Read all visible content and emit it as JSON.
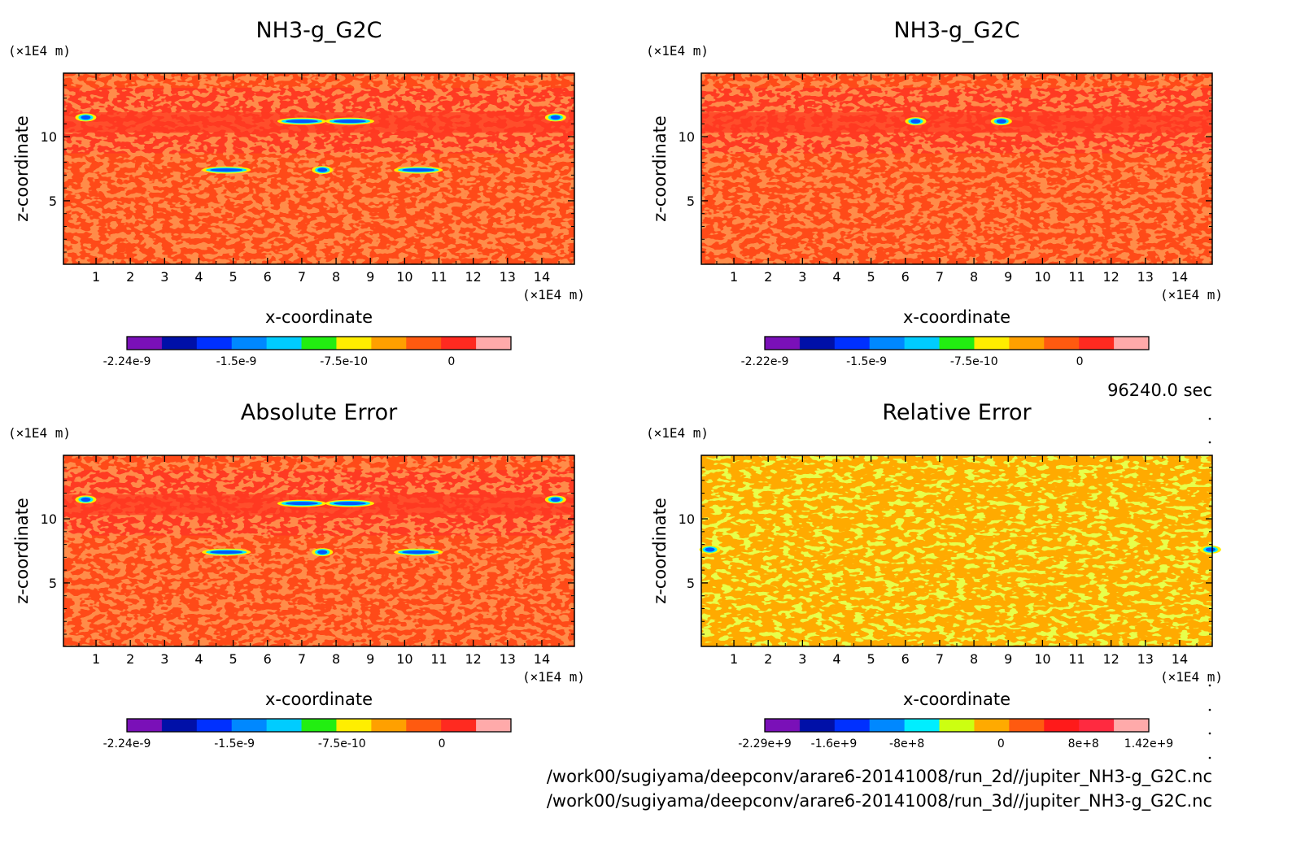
{
  "colors": {
    "field_red": "#ff3a22",
    "field_redorange": "#ff4a18",
    "field_orange": "#ffaa00",
    "field_yellowgreen": "#ccff11",
    "frame": "#000000",
    "blob_blue": "#0055ff",
    "blob_cyan": "#00eeff",
    "blob_yellow": "#ffee00"
  },
  "time_label": "96240.0 sec",
  "file_paths": [
    "/work00/sugiyama/deepconv/arare6-20141008/run_2d//jupiter_NH3-g_G2C.nc",
    "/work00/sugiyama/deepconv/arare6-20141008/run_3d//jupiter_NH3-g_G2C.nc"
  ],
  "chart_data": [
    {
      "type": "heatmap",
      "title": "NH3-g_G2C",
      "xlabel": "x-coordinate",
      "ylabel": "z-coordinate",
      "x_unit": "(×1E4 m)",
      "y_unit": "(×1E4 m)",
      "xlim": [
        0.05,
        14.95
      ],
      "ylim": [
        0.05,
        14.95
      ],
      "x_ticks": [
        "1",
        "2",
        "3",
        "4",
        "5",
        "6",
        "7",
        "8",
        "9",
        "10",
        "11",
        "12",
        "13",
        "14"
      ],
      "y_ticks": [
        "5",
        "10"
      ],
      "colorbar": {
        "colors": [
          "#7a10b8",
          "#0010a8",
          "#0030ff",
          "#0088ff",
          "#00ccff",
          "#22ee11",
          "#ffee00",
          "#ffa000",
          "#ff5a10",
          "#ff2a20",
          "#ffaaaa"
        ],
        "tick_labels": [
          "-2.24e-9",
          "-1.5e-9",
          "-7.5e-10",
          "0"
        ]
      },
      "background": "red-orange",
      "features": [
        {
          "x": 0.7,
          "z": 11.5,
          "kind": "blob"
        },
        {
          "x": 14.4,
          "z": 11.5,
          "kind": "blob"
        },
        {
          "x": 7.0,
          "z": 11.2,
          "kind": "streak"
        },
        {
          "x": 8.4,
          "z": 11.2,
          "kind": "streak"
        },
        {
          "x": 4.8,
          "z": 7.4,
          "kind": "streak"
        },
        {
          "x": 7.6,
          "z": 7.4,
          "kind": "blob"
        },
        {
          "x": 10.4,
          "z": 7.4,
          "kind": "streak"
        }
      ]
    },
    {
      "type": "heatmap",
      "title": "NH3-g_G2C",
      "xlabel": "x-coordinate",
      "ylabel": "z-coordinate",
      "x_unit": "(×1E4 m)",
      "y_unit": "(×1E4 m)",
      "xlim": [
        0.05,
        14.95
      ],
      "ylim": [
        0.05,
        14.95
      ],
      "x_ticks": [
        "1",
        "2",
        "3",
        "4",
        "5",
        "6",
        "7",
        "8",
        "9",
        "10",
        "11",
        "12",
        "13",
        "14"
      ],
      "y_ticks": [
        "5",
        "10"
      ],
      "colorbar": {
        "colors": [
          "#7a10b8",
          "#0010a8",
          "#0030ff",
          "#0088ff",
          "#00ccff",
          "#22ee11",
          "#ffee00",
          "#ffa000",
          "#ff5a10",
          "#ff2a20",
          "#ffaaaa"
        ],
        "tick_labels": [
          "-2.22e-9",
          "-1.5e-9",
          "-7.5e-10",
          "0"
        ]
      },
      "background": "red-orange",
      "features": [
        {
          "x": 6.3,
          "z": 11.2,
          "kind": "blob"
        },
        {
          "x": 8.8,
          "z": 11.2,
          "kind": "blob"
        }
      ]
    },
    {
      "type": "heatmap",
      "title": "Absolute Error",
      "xlabel": "x-coordinate",
      "ylabel": "z-coordinate",
      "x_unit": "(×1E4 m)",
      "y_unit": "(×1E4 m)",
      "xlim": [
        0.05,
        14.95
      ],
      "ylim": [
        0.05,
        14.95
      ],
      "x_ticks": [
        "1",
        "2",
        "3",
        "4",
        "5",
        "6",
        "7",
        "8",
        "9",
        "10",
        "11",
        "12",
        "13",
        "14"
      ],
      "y_ticks": [
        "5",
        "10"
      ],
      "colorbar": {
        "colors": [
          "#7a10b8",
          "#0010a8",
          "#0030ff",
          "#0088ff",
          "#00ccff",
          "#22ee11",
          "#ffee00",
          "#ffa000",
          "#ff5a10",
          "#ff2a20",
          "#ffaaaa"
        ],
        "tick_labels": [
          "-2.24e-9",
          "-1.5e-9",
          "-7.5e-10",
          "0"
        ]
      },
      "background": "red-orange",
      "features": [
        {
          "x": 0.7,
          "z": 11.5,
          "kind": "blob"
        },
        {
          "x": 14.4,
          "z": 11.5,
          "kind": "blob"
        },
        {
          "x": 7.0,
          "z": 11.2,
          "kind": "streak"
        },
        {
          "x": 8.4,
          "z": 11.2,
          "kind": "streak"
        },
        {
          "x": 4.8,
          "z": 7.4,
          "kind": "streak"
        },
        {
          "x": 7.6,
          "z": 7.4,
          "kind": "blob"
        },
        {
          "x": 10.4,
          "z": 7.4,
          "kind": "streak"
        }
      ]
    },
    {
      "type": "heatmap",
      "title": "Relative Error",
      "xlabel": "x-coordinate",
      "ylabel": "z-coordinate",
      "x_unit": "(×1E4 m)",
      "y_unit": "(×1E4 m)",
      "xlim": [
        0.05,
        14.95
      ],
      "ylim": [
        0.05,
        14.95
      ],
      "x_ticks": [
        "1",
        "2",
        "3",
        "4",
        "5",
        "6",
        "7",
        "8",
        "9",
        "10",
        "11",
        "12",
        "13",
        "14"
      ],
      "y_ticks": [
        "5",
        "10"
      ],
      "colorbar": {
        "colors": [
          "#7a10b8",
          "#0010a8",
          "#0030ff",
          "#0088ff",
          "#00eeff",
          "#ccff11",
          "#ffaa00",
          "#ff5a10",
          "#ff1a1a",
          "#ff2a40",
          "#ffaaaa"
        ],
        "tick_labels": [
          "-2.29e+9",
          "-1.6e+9",
          "-8e+8",
          "0",
          "8e+8",
          "1.42e+9"
        ]
      },
      "background": "orange-yellowgreen",
      "features": [
        {
          "x": 0.3,
          "z": 7.6,
          "kind": "blob"
        },
        {
          "x": 14.9,
          "z": 7.6,
          "kind": "blob"
        }
      ]
    }
  ]
}
